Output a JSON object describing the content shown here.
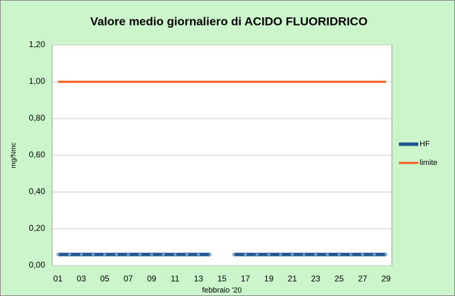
{
  "chart_data": {
    "type": "line",
    "title": "Valore medio giornaliero di ACIDO FLUORIDRICO",
    "y_label": "mg/Nmc",
    "x_label": "febbraio '20",
    "categories": [
      "01",
      null,
      "03",
      null,
      "05",
      null,
      "07",
      null,
      "09",
      null,
      "11",
      null,
      "13",
      null,
      "15",
      null,
      "17",
      null,
      "19",
      null,
      "21",
      null,
      "23",
      null,
      "25",
      null,
      "27",
      null,
      "29"
    ],
    "series": [
      {
        "name": "HF",
        "color": "#1f5591",
        "values": [
          0.06,
          0.06,
          0.06,
          0.06,
          0.06,
          0.06,
          0.06,
          0.06,
          0.06,
          0.06,
          0.06,
          0.06,
          0.06,
          0.06,
          null,
          0.06,
          0.06,
          0.06,
          0.06,
          0.06,
          0.06,
          0.06,
          0.06,
          0.06,
          0.06,
          0.06,
          0.06,
          0.06,
          0.06
        ]
      },
      {
        "name": "limite",
        "color": "#f55a1e",
        "values": [
          1,
          1,
          1,
          1,
          1,
          1,
          1,
          1,
          1,
          1,
          1,
          1,
          1,
          1,
          1,
          1,
          1,
          1,
          1,
          1,
          1,
          1,
          1,
          1,
          1,
          1,
          1,
          1,
          1
        ]
      }
    ],
    "ylim": [
      0,
      1.2
    ],
    "yticks": [
      {
        "value": 0,
        "label": "0,00"
      },
      {
        "value": 0.2,
        "label": "0,20"
      },
      {
        "value": 0.4,
        "label": "0,40"
      },
      {
        "value": 0.6,
        "label": "0,60"
      },
      {
        "value": 0.8,
        "label": "0,80"
      },
      {
        "value": 1,
        "label": "1,00"
      },
      {
        "value": 1.2,
        "label": "1,20"
      }
    ],
    "grid": true,
    "legend": "right"
  }
}
